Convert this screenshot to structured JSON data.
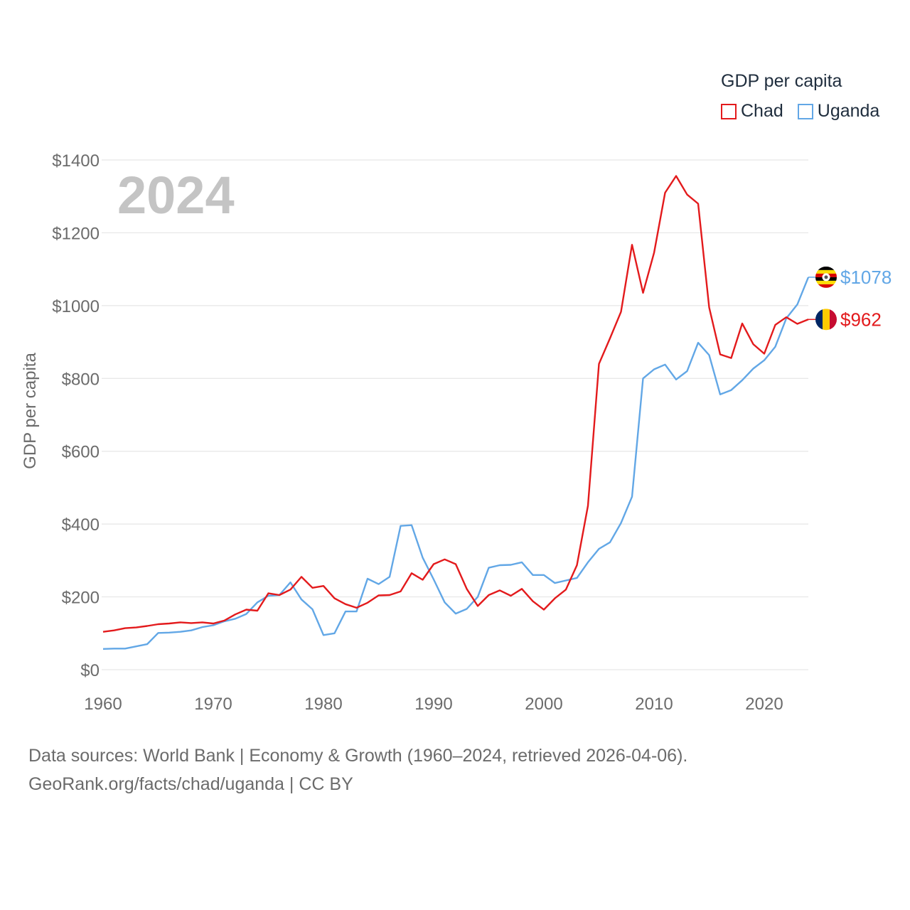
{
  "chart_data": {
    "type": "line",
    "year_label": "2024",
    "legend_title": "GDP per capita",
    "ylabel": "GDP per capita",
    "xlabel": "",
    "xlim": [
      1960,
      2024
    ],
    "ylim": [
      0,
      1400
    ],
    "x_ticks": [
      1960,
      1970,
      1980,
      1990,
      2000,
      2010,
      2020
    ],
    "y_ticks": [
      0,
      200,
      400,
      600,
      800,
      1000,
      1200,
      1400
    ],
    "y_tick_labels": [
      "$0",
      "$200",
      "$400",
      "$600",
      "$800",
      "$1000",
      "$1200",
      "$1400"
    ],
    "x_tick_labels": [
      "1960",
      "1970",
      "1980",
      "1990",
      "2000",
      "2010",
      "2020"
    ],
    "grid": true,
    "legend_position": "top-right",
    "series": [
      {
        "name": "Chad",
        "color": "#e31a1c",
        "end_label": "$962",
        "flag": "chad-flag",
        "x": [
          1960,
          1961,
          1962,
          1963,
          1964,
          1965,
          1966,
          1967,
          1968,
          1969,
          1970,
          1971,
          1972,
          1973,
          1974,
          1975,
          1976,
          1977,
          1978,
          1979,
          1980,
          1981,
          1982,
          1983,
          1984,
          1985,
          1986,
          1987,
          1988,
          1989,
          1990,
          1991,
          1992,
          1993,
          1994,
          1995,
          1996,
          1997,
          1998,
          1999,
          2000,
          2001,
          2002,
          2003,
          2004,
          2005,
          2006,
          2007,
          2008,
          2009,
          2010,
          2011,
          2012,
          2013,
          2014,
          2015,
          2016,
          2017,
          2018,
          2019,
          2020,
          2021,
          2022,
          2023,
          2024
        ],
        "values": [
          104,
          108,
          114,
          116,
          120,
          125,
          127,
          130,
          128,
          130,
          127,
          135,
          152,
          165,
          162,
          210,
          205,
          220,
          255,
          225,
          230,
          196,
          180,
          170,
          184,
          204,
          205,
          215,
          265,
          247,
          290,
          303,
          290,
          222,
          175,
          205,
          218,
          203,
          222,
          188,
          165,
          196,
          220,
          287,
          450,
          840,
          910,
          983,
          1167,
          1035,
          1145,
          1310,
          1356,
          1305,
          1280,
          995,
          866,
          856,
          951,
          894,
          868,
          947,
          968,
          950,
          962
        ]
      },
      {
        "name": "Uganda",
        "color": "#62a7e6",
        "end_label": "$1078",
        "flag": "uganda-flag",
        "x": [
          1960,
          1961,
          1962,
          1963,
          1964,
          1965,
          1966,
          1967,
          1968,
          1969,
          1970,
          1971,
          1972,
          1973,
          1974,
          1975,
          1976,
          1977,
          1978,
          1979,
          1980,
          1981,
          1982,
          1983,
          1984,
          1985,
          1986,
          1987,
          1988,
          1989,
          1990,
          1991,
          1992,
          1993,
          1994,
          1995,
          1996,
          1997,
          1998,
          1999,
          2000,
          2001,
          2002,
          2003,
          2004,
          2005,
          2006,
          2007,
          2008,
          2009,
          2010,
          2011,
          2012,
          2013,
          2014,
          2015,
          2016,
          2017,
          2018,
          2019,
          2020,
          2021,
          2022,
          2023,
          2024
        ],
        "values": [
          57,
          58,
          58,
          64,
          70,
          101,
          102,
          104,
          108,
          117,
          122,
          133,
          140,
          153,
          185,
          203,
          205,
          240,
          193,
          166,
          95,
          100,
          160,
          160,
          250,
          235,
          255,
          395,
          397,
          308,
          248,
          185,
          154,
          167,
          200,
          280,
          287,
          288,
          295,
          260,
          260,
          238,
          245,
          252,
          295,
          332,
          350,
          403,
          475,
          800,
          825,
          838,
          797,
          820,
          898,
          864,
          756,
          768,
          795,
          827,
          850,
          887,
          965,
          1003,
          1078
        ]
      }
    ]
  },
  "footer": {
    "line1": "Data sources: World Bank | Economy & Growth (1960–2024, retrieved 2026-04-06).",
    "line2": "GeoRank.org/facts/chad/uganda | CC BY"
  }
}
